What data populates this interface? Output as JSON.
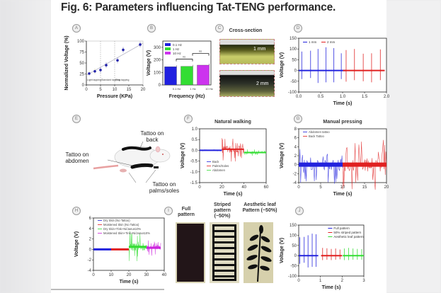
{
  "figure": {
    "title": "Fig. 6: Parameters influencing Tat-TENG performance."
  },
  "panels": {
    "A": {
      "letter": "A"
    },
    "B": {
      "letter": "B"
    },
    "C": {
      "letter": "C",
      "title": "Cross-section",
      "labels": [
        "1 mm",
        "2 mm"
      ]
    },
    "D": {
      "letter": "D"
    },
    "E": {
      "letter": "E",
      "labels": {
        "back": "Tattoo on back",
        "abdomen": "Tattoo on abdomen",
        "palms": "Tattoo on palms/soles"
      }
    },
    "F": {
      "letter": "F"
    },
    "G": {
      "letter": "G"
    },
    "H": {
      "letter": "H"
    },
    "I": {
      "letter": "I",
      "labels": [
        "Full pattern",
        "Striped pattern (~50%)",
        "Aesthetic leaf Pattern (~50%)"
      ]
    },
    "J": {
      "letter": "J"
    }
  },
  "chart_data": [
    {
      "id": "A",
      "type": "scatter",
      "xlabel": "Pressure (KPa)",
      "ylabel": "Normalized Voltage (%)",
      "xlim": [
        0,
        20
      ],
      "ylim": [
        0,
        100
      ],
      "xticks": [
        "0",
        "5",
        "10",
        "15",
        "20"
      ],
      "yticks": [
        "0",
        "25",
        "50",
        "75",
        "100"
      ],
      "regions": [
        "Light tapping",
        "Standard tapping",
        "Firm tapping"
      ],
      "region_bounds": [
        5,
        10
      ],
      "x": [
        1,
        3,
        5,
        7,
        11,
        13,
        19
      ],
      "y": [
        26,
        31,
        34,
        45,
        56,
        80,
        92
      ],
      "fit": [
        [
          0,
          22
        ],
        [
          20,
          95
        ]
      ],
      "color": "#2222aa"
    },
    {
      "id": "B",
      "type": "bar",
      "xlabel": "Frequency (Hz)",
      "ylabel": "Voltage (V)",
      "ylim": [
        0,
        350
      ],
      "yticks": [
        "0",
        "100",
        "200",
        "300"
      ],
      "categories": [
        "0.1 Hz",
        "1 Hz",
        "10 Hz"
      ],
      "values": [
        145,
        148,
        158
      ],
      "colors": [
        "#2020e0",
        "#33dd33",
        "#cc33ee"
      ],
      "legend": [
        "0.1 Hz",
        "1 Hz",
        "10 Hz"
      ],
      "annotations": [
        "ns",
        "ns"
      ]
    },
    {
      "id": "D",
      "type": "line",
      "xlabel": "Time (s)",
      "ylabel": "Voltage (V)",
      "xlim": [
        0,
        2
      ],
      "ylim": [
        -100,
        150
      ],
      "xticks": [
        "0.0",
        "0.5",
        "1.0",
        "1.5",
        "2.0"
      ],
      "yticks": [
        "-100",
        "-50",
        "0",
        "50",
        "100",
        "150"
      ],
      "series": [
        {
          "name": "1 mm",
          "color": "#2222dd",
          "peaks_t": [
            0.07,
            0.27,
            0.44,
            0.62,
            0.8,
            0.97
          ],
          "peaks_up": [
            88,
            92,
            100,
            108,
            104,
            80
          ],
          "peaks_dn": [
            -40,
            -35,
            -58,
            -55,
            -55,
            -40
          ]
        },
        {
          "name": "2 mm",
          "color": "#e02020",
          "peaks_t": [
            1.08,
            1.27,
            1.47,
            1.66,
            1.86
          ],
          "peaks_up": [
            95,
            100,
            78,
            80,
            98
          ],
          "peaks_dn": [
            -52,
            -45,
            -50,
            -55,
            -45
          ]
        }
      ]
    },
    {
      "id": "F",
      "type": "line",
      "title": "Natural walking",
      "xlabel": "Time (s)",
      "ylabel": "Voltage (V)",
      "xlim": [
        0,
        60
      ],
      "ylim": [
        -1.5,
        1.0
      ],
      "xticks": [
        "0",
        "20",
        "40",
        "60"
      ],
      "yticks": [
        "-1.5",
        "-1.0",
        "-0.5",
        "0.0",
        "0.5",
        "1.0"
      ],
      "series": [
        {
          "name": "Back",
          "color": "#2222dd",
          "t_range": [
            0,
            20
          ],
          "baseline": 0.0,
          "amp": 0.03
        },
        {
          "name": "Palms/Soles",
          "color": "#e02020",
          "t_range": [
            20,
            40
          ],
          "baseline": 0.05,
          "amp": 0.6
        },
        {
          "name": "Abdomen",
          "color": "#33dd33",
          "t_range": [
            40,
            60
          ],
          "baseline": -0.1,
          "amp": 0.15
        }
      ]
    },
    {
      "id": "G",
      "type": "line",
      "title": "Manual pressing",
      "xlabel": "Time (s)",
      "ylabel": "Voltage (V)",
      "xlim": [
        0,
        20
      ],
      "ylim": [
        -4,
        8
      ],
      "xticks": [
        "0",
        "5",
        "10",
        "15",
        "20"
      ],
      "yticks": [
        "-4",
        "-2",
        "0",
        "2",
        "4",
        "6",
        "8"
      ],
      "series": [
        {
          "name": "Abdomen tattoo",
          "color": "#2222dd",
          "t_range": [
            0,
            10
          ],
          "baseline": 0,
          "amp": 4.5
        },
        {
          "name": "Back Tattoo",
          "color": "#e02020",
          "t_range": [
            10,
            20
          ],
          "baseline": 0,
          "amp": 6
        }
      ]
    },
    {
      "id": "H",
      "type": "line",
      "xlabel": "Time (s)",
      "ylabel": "Voltage (V)",
      "xlim": [
        0,
        40
      ],
      "ylim": [
        -4,
        6
      ],
      "xticks": [
        "0",
        "10",
        "20",
        "30",
        "40"
      ],
      "yticks": [
        "-4",
        "-2",
        "0",
        "2",
        "4",
        "6"
      ],
      "series": [
        {
          "name": "Dry Skin (No Tattoo)",
          "color": "#2222dd",
          "t_range": [
            0,
            10
          ],
          "baseline": 0,
          "amp": 0.1
        },
        {
          "name": "Moistened Skin (No Tattoo)",
          "color": "#e02020",
          "t_range": [
            10,
            20
          ],
          "baseline": 0,
          "amp": 0.1
        },
        {
          "name": "Dry Skin+Tink+Ni/Janus10%",
          "color": "#33dd33",
          "t_range": [
            20,
            30
          ],
          "baseline": 0.5,
          "amp": 3
        },
        {
          "name": "Moistened Skin+Tink+Ni/Janus10%",
          "color": "#cc22dd",
          "t_range": [
            30,
            38
          ],
          "baseline": 0.3,
          "amp": 1.5
        }
      ]
    },
    {
      "id": "J",
      "type": "line",
      "xlabel": "Time (s)",
      "ylabel": "Voltage (V)",
      "xlim": [
        0,
        3
      ],
      "ylim": [
        -100,
        150
      ],
      "xticks": [
        "0",
        "1",
        "2",
        "3"
      ],
      "yticks": [
        "-100",
        "-50",
        "0",
        "50",
        "100",
        "150"
      ],
      "series": [
        {
          "name": "Full pattern",
          "color": "#2222dd",
          "peaks_t": [
            0.05,
            0.25,
            0.43,
            0.62,
            0.8
          ],
          "peaks_up": [
            90,
            92,
            100,
            108,
            105
          ],
          "peaks_dn": [
            -40,
            -35,
            -58,
            -55,
            -55
          ]
        },
        {
          "name": "50% striped pattern",
          "color": "#e02020",
          "peaks_t": [
            1.1,
            1.3,
            1.5,
            1.7,
            1.9
          ],
          "peaks_up": [
            38,
            36,
            33,
            35,
            30
          ],
          "peaks_dn": [
            -22,
            -20,
            -22,
            -20,
            -18
          ]
        },
        {
          "name": "Aesthetic leaf pattern",
          "color": "#33dd33",
          "peaks_t": [
            2.1,
            2.3,
            2.5,
            2.7,
            2.9
          ],
          "peaks_up": [
            35,
            38,
            35,
            33,
            32
          ],
          "peaks_dn": [
            -22,
            -22,
            -20,
            -20,
            -20
          ]
        }
      ]
    }
  ]
}
